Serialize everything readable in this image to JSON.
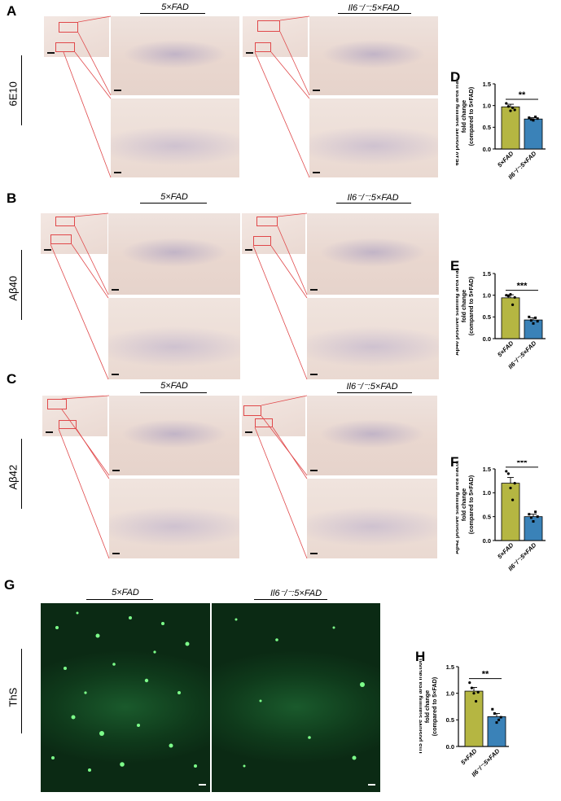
{
  "panels": {
    "A": {
      "letter": "A",
      "stain": "6E10"
    },
    "B": {
      "letter": "B",
      "stain": "Aβ40"
    },
    "C": {
      "letter": "C",
      "stain": "Aβ42"
    },
    "G": {
      "letter": "G",
      "stain": "ThS"
    }
  },
  "groups": {
    "wt": "5×FAD",
    "ko": "Il6⁻/⁻:5×FAD"
  },
  "colors": {
    "wt_bar": "#b5b642",
    "ko_bar": "#3a82b8",
    "redbox": "#e0484a",
    "ths": "#0f3a1b"
  },
  "chart_data": [
    {
      "panel": "D",
      "type": "bar",
      "categories": [
        "5×FAD",
        "Il6⁻/⁻:5×FAD"
      ],
      "values": [
        0.97,
        0.69
      ],
      "sem": [
        0.06,
        0.03
      ],
      "points": [
        [
          1.05,
          0.98,
          0.88,
          0.95,
          0.9
        ],
        [
          0.72,
          0.68,
          0.66,
          0.74,
          0.7
        ]
      ],
      "significance": "**",
      "ylabel": "6E10 positive staining area fraction\nfold change\n(compared to 5×FAD)",
      "ylim": [
        0,
        1.5
      ],
      "yticks": [
        "0.0",
        "0.5",
        "1.0",
        "1.5"
      ],
      "ticks": [
        0,
        0.5,
        1.0,
        1.5
      ]
    },
    {
      "panel": "E",
      "type": "bar",
      "categories": [
        "5×FAD",
        "Il6⁻/⁻:5×FAD"
      ],
      "values": [
        0.94,
        0.43
      ],
      "sem": [
        0.07,
        0.05
      ],
      "points": [
        [
          1.0,
          0.98,
          1.02,
          0.78,
          0.95
        ],
        [
          0.5,
          0.42,
          0.35,
          0.48,
          0.4
        ]
      ],
      "significance": "***",
      "ylabel": "Aβ40 positive staining area fraction\nfold change\n(compared to 5×FAD)",
      "ylim": [
        0,
        1.5
      ],
      "yticks": [
        "0.0",
        "0.5",
        "1.0",
        "1.5"
      ],
      "ticks": [
        0,
        0.5,
        1.0,
        1.5
      ]
    },
    {
      "panel": "F",
      "type": "bar",
      "categories": [
        "5×FAD",
        "Il6⁻/⁻:5×FAD"
      ],
      "values": [
        1.2,
        0.5
      ],
      "sem": [
        0.12,
        0.05
      ],
      "points": [
        [
          1.45,
          1.4,
          1.1,
          0.85,
          1.2
        ],
        [
          0.55,
          0.48,
          0.4,
          0.6,
          0.5
        ]
      ],
      "significance": "***",
      "ylabel": "Aβ42 positive staining area fraction\nfold change\n(compared to 5×FAD)",
      "ylim": [
        0,
        1.5
      ],
      "yticks": [
        "0.0",
        "0.5",
        "1.0",
        "1.5"
      ],
      "ticks": [
        0,
        0.5,
        1.0,
        1.5
      ]
    },
    {
      "panel": "H",
      "type": "bar",
      "categories": [
        "5×FAD",
        "Il6⁻/⁻:5×FAD"
      ],
      "values": [
        1.04,
        0.56
      ],
      "sem": [
        0.07,
        0.06
      ],
      "points": [
        [
          1.2,
          1.1,
          1.0,
          0.85,
          1.02
        ],
        [
          0.7,
          0.62,
          0.45,
          0.5,
          0.55
        ]
      ],
      "significance": "**",
      "ylabel": "ThS positive staining area fraction\nfold change\n(compared to 5×FAD)",
      "ylim": [
        0,
        1.5
      ],
      "yticks": [
        "0.0",
        "0.5",
        "1.0",
        "1.5"
      ],
      "ticks": [
        0,
        0.5,
        1.0,
        1.5
      ]
    }
  ]
}
